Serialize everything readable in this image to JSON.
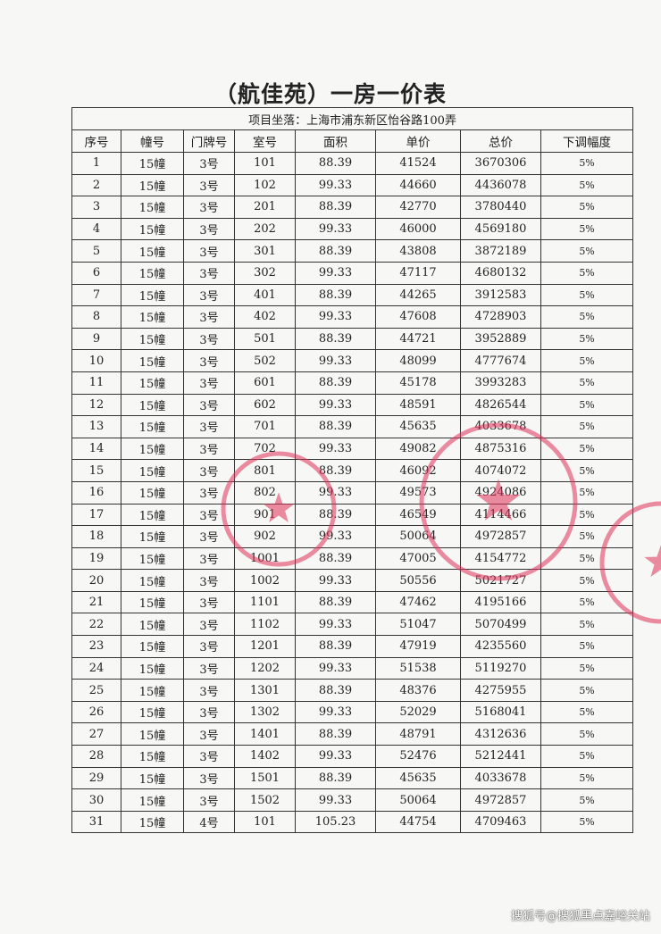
{
  "title": "（航佳苑）一房一价表",
  "address": "项目坐落：上海市浦东新区怡谷路100弄",
  "columns": [
    "序号",
    "幢号",
    "门牌号",
    "室号",
    "面积",
    "单价",
    "总价",
    "下调幅度"
  ],
  "rows": [
    [
      "1",
      "15幢",
      "3号",
      "101",
      "88.39",
      "41524",
      "3670306",
      "5%"
    ],
    [
      "2",
      "15幢",
      "3号",
      "102",
      "99.33",
      "44660",
      "4436078",
      "5%"
    ],
    [
      "3",
      "15幢",
      "3号",
      "201",
      "88.39",
      "42770",
      "3780440",
      "5%"
    ],
    [
      "4",
      "15幢",
      "3号",
      "202",
      "99.33",
      "46000",
      "4569180",
      "5%"
    ],
    [
      "5",
      "15幢",
      "3号",
      "301",
      "88.39",
      "43808",
      "3872189",
      "5%"
    ],
    [
      "6",
      "15幢",
      "3号",
      "302",
      "99.33",
      "47117",
      "4680132",
      "5%"
    ],
    [
      "7",
      "15幢",
      "3号",
      "401",
      "88.39",
      "44265",
      "3912583",
      "5%"
    ],
    [
      "8",
      "15幢",
      "3号",
      "402",
      "99.33",
      "47608",
      "4728903",
      "5%"
    ],
    [
      "9",
      "15幢",
      "3号",
      "501",
      "88.39",
      "44721",
      "3952889",
      "5%"
    ],
    [
      "10",
      "15幢",
      "3号",
      "502",
      "99.33",
      "48099",
      "4777674",
      "5%"
    ],
    [
      "11",
      "15幢",
      "3号",
      "601",
      "88.39",
      "45178",
      "3993283",
      "5%"
    ],
    [
      "12",
      "15幢",
      "3号",
      "602",
      "99.33",
      "48591",
      "4826544",
      "5%"
    ],
    [
      "13",
      "15幢",
      "3号",
      "701",
      "88.39",
      "45635",
      "4033678",
      "5%"
    ],
    [
      "14",
      "15幢",
      "3号",
      "702",
      "99.33",
      "49082",
      "4875316",
      "5%"
    ],
    [
      "15",
      "15幢",
      "3号",
      "801",
      "88.39",
      "46092",
      "4074072",
      "5%"
    ],
    [
      "16",
      "15幢",
      "3号",
      "802",
      "99.33",
      "49573",
      "4924086",
      "5%"
    ],
    [
      "17",
      "15幢",
      "3号",
      "901",
      "88.39",
      "46549",
      "4114466",
      "5%"
    ],
    [
      "18",
      "15幢",
      "3号",
      "902",
      "99.33",
      "50064",
      "4972857",
      "5%"
    ],
    [
      "19",
      "15幢",
      "3号",
      "1001",
      "88.39",
      "47005",
      "4154772",
      "5%"
    ],
    [
      "20",
      "15幢",
      "3号",
      "1002",
      "99.33",
      "50556",
      "5021727",
      "5%"
    ],
    [
      "21",
      "15幢",
      "3号",
      "1101",
      "88.39",
      "47462",
      "4195166",
      "5%"
    ],
    [
      "22",
      "15幢",
      "3号",
      "1102",
      "99.33",
      "51047",
      "5070499",
      "5%"
    ],
    [
      "23",
      "15幢",
      "3号",
      "1201",
      "88.39",
      "47919",
      "4235560",
      "5%"
    ],
    [
      "24",
      "15幢",
      "3号",
      "1202",
      "99.33",
      "51538",
      "5119270",
      "5%"
    ],
    [
      "25",
      "15幢",
      "3号",
      "1301",
      "88.39",
      "48376",
      "4275955",
      "5%"
    ],
    [
      "26",
      "15幢",
      "3号",
      "1302",
      "99.33",
      "52029",
      "5168041",
      "5%"
    ],
    [
      "27",
      "15幢",
      "3号",
      "1401",
      "88.39",
      "48791",
      "4312636",
      "5%"
    ],
    [
      "28",
      "15幢",
      "3号",
      "1402",
      "99.33",
      "52476",
      "5212441",
      "5%"
    ],
    [
      "29",
      "15幢",
      "3号",
      "1501",
      "88.39",
      "45635",
      "4033678",
      "5%"
    ],
    [
      "30",
      "15幢",
      "3号",
      "1502",
      "99.33",
      "50064",
      "4972857",
      "5%"
    ],
    [
      "31",
      "15幢",
      "4号",
      "101",
      "105.23",
      "44754",
      "4709463",
      "5%"
    ]
  ],
  "stamp_color": "#e0325a",
  "watermark": "搜狐号@搜狐黑点嘉峪关站"
}
